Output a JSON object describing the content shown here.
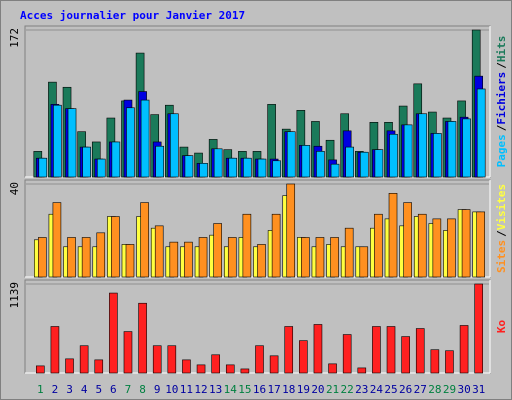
{
  "title": "Acces journalier pour Janvier 2017",
  "legend_separator": "/",
  "chart_data": [
    {
      "type": "bar",
      "ylim": [
        0,
        172
      ],
      "yticks": [
        172
      ],
      "series": [
        {
          "name": "Hits",
          "color": "#1a7a5a",
          "values": [
            30,
            111,
            105,
            53,
            41,
            69,
            89,
            145,
            73,
            84,
            35,
            28,
            44,
            32,
            30,
            30,
            85,
            56,
            78,
            65,
            43,
            74,
            30,
            64,
            64,
            83,
            109,
            76,
            69,
            89,
            172
          ]
        },
        {
          "name": "Fichiers",
          "color": "#0000e0",
          "values": [
            22,
            85,
            80,
            35,
            21,
            41,
            90,
            100,
            41,
            74,
            25,
            16,
            33,
            22,
            22,
            21,
            21,
            53,
            37,
            36,
            20,
            54,
            29,
            32,
            54,
            61,
            74,
            51,
            65,
            70,
            118
          ]
        },
        {
          "name": "Pages",
          "color": "#00bfff",
          "values": [
            22,
            84,
            80,
            35,
            21,
            41,
            81,
            90,
            36,
            74,
            25,
            16,
            33,
            22,
            22,
            21,
            19,
            53,
            37,
            30,
            15,
            35,
            29,
            32,
            50,
            61,
            74,
            51,
            65,
            68,
            103
          ]
        }
      ]
    },
    {
      "type": "bar",
      "ylim": [
        0,
        40
      ],
      "yticks": [
        40
      ],
      "series": [
        {
          "name": "Visites",
          "color": "#ffff40",
          "values": [
            16,
            27,
            13,
            13,
            13,
            26,
            14,
            26,
            21,
            13,
            13,
            13,
            18,
            13,
            17,
            13,
            20,
            35,
            17,
            13,
            14,
            13,
            13,
            21,
            25,
            22,
            26,
            23,
            20,
            29,
            28
          ]
        },
        {
          "name": "Sites",
          "color": "#ff9020",
          "values": [
            17,
            32,
            17,
            17,
            19,
            26,
            14,
            32,
            22,
            15,
            15,
            17,
            23,
            17,
            27,
            14,
            27,
            40,
            17,
            17,
            17,
            21,
            13,
            27,
            36,
            32,
            27,
            25,
            25,
            29,
            28
          ]
        }
      ]
    },
    {
      "type": "bar",
      "ylim": [
        0,
        1139
      ],
      "yticks": [
        1139
      ],
      "categories": [
        "1",
        "2",
        "3",
        "4",
        "5",
        "6",
        "7",
        "8",
        "9",
        "10",
        "11",
        "12",
        "13",
        "14",
        "15",
        "16",
        "17",
        "18",
        "19",
        "20",
        "21",
        "22",
        "23",
        "24",
        "25",
        "26",
        "27",
        "28",
        "29",
        "30",
        "31"
      ],
      "category_colors": [
        "#008040",
        "#0000a0",
        "#0000a0",
        "#0000a0",
        "#0000a0",
        "#0000a0",
        "#008040",
        "#008040",
        "#0000a0",
        "#0000a0",
        "#0000a0",
        "#0000a0",
        "#0000a0",
        "#008040",
        "#008040",
        "#0000a0",
        "#0000a0",
        "#0000a0",
        "#0000a0",
        "#0000a0",
        "#008040",
        "#008040",
        "#0000a0",
        "#0000a0",
        "#0000a0",
        "#0000a0",
        "#0000a0",
        "#008040",
        "#008040",
        "#0000a0",
        "#0000a0"
      ],
      "series": [
        {
          "name": "Ko",
          "color": "#ff2020",
          "values": [
            91,
            595,
            181,
            349,
            168,
            1023,
            530,
            893,
            349,
            349,
            168,
            104,
            233,
            104,
            52,
            349,
            220,
            595,
            414,
            621,
            117,
            492,
            65,
            595,
            595,
            466,
            569,
            298,
            285,
            608,
            1139
          ]
        }
      ]
    }
  ]
}
